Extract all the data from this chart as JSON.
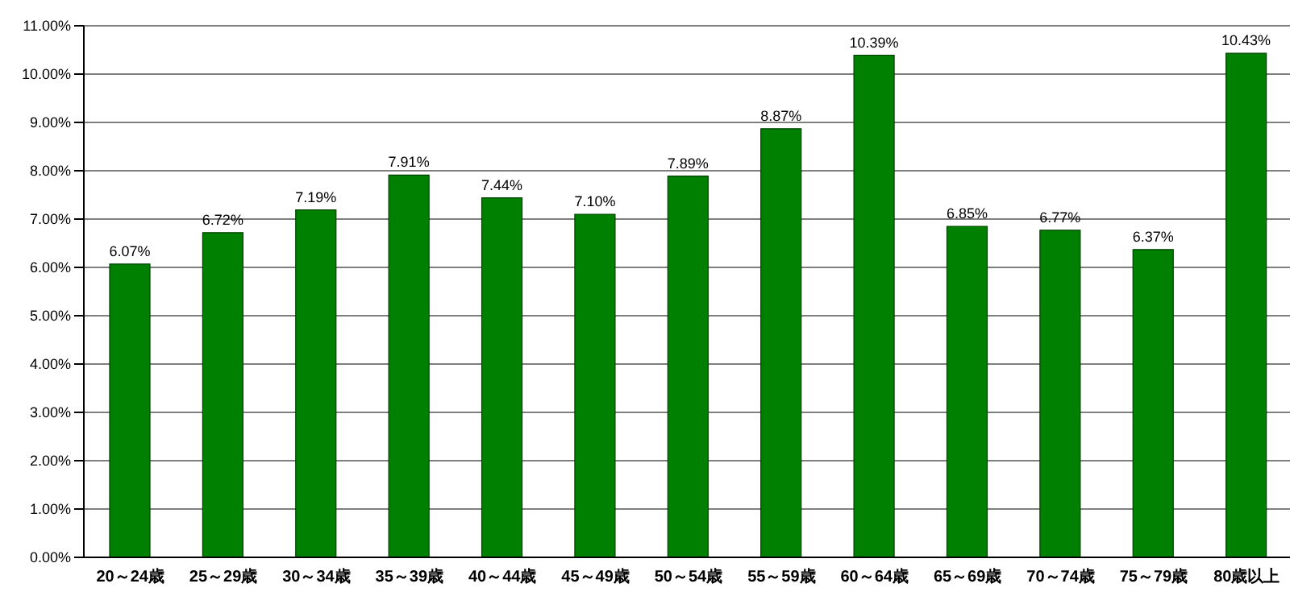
{
  "chart_data": {
    "type": "bar",
    "categories": [
      "20～24歳",
      "25～29歳",
      "30～34歳",
      "35～39歳",
      "40～44歳",
      "45～49歳",
      "50～54歳",
      "55～59歳",
      "60～64歳",
      "65～69歳",
      "70～74歳",
      "75～79歳",
      "80歳以上"
    ],
    "values": [
      6.07,
      6.72,
      7.19,
      7.91,
      7.44,
      7.1,
      7.89,
      8.87,
      10.39,
      6.85,
      6.77,
      6.37,
      10.43
    ],
    "value_labels": [
      "6.07%",
      "6.72%",
      "7.19%",
      "7.91%",
      "7.44%",
      "7.10%",
      "7.89%",
      "8.87%",
      "10.39%",
      "6.85%",
      "6.77%",
      "6.37%",
      "10.43%"
    ],
    "color": "#008000",
    "ylim": [
      0,
      11
    ],
    "yticks": [
      {
        "value": 0,
        "label": "0.00%"
      },
      {
        "value": 1,
        "label": "1.00%"
      },
      {
        "value": 2,
        "label": "2.00%"
      },
      {
        "value": 3,
        "label": "3.00%"
      },
      {
        "value": 4,
        "label": "4.00%"
      },
      {
        "value": 5,
        "label": "5.00%"
      },
      {
        "value": 6,
        "label": "6.00%"
      },
      {
        "value": 7,
        "label": "7.00%"
      },
      {
        "value": 8,
        "label": "8.00%"
      },
      {
        "value": 9,
        "label": "9.00%"
      },
      {
        "value": 10,
        "label": "10.00%"
      },
      {
        "value": 11,
        "label": "11.00%"
      }
    ],
    "grid": "y",
    "legend": false
  }
}
